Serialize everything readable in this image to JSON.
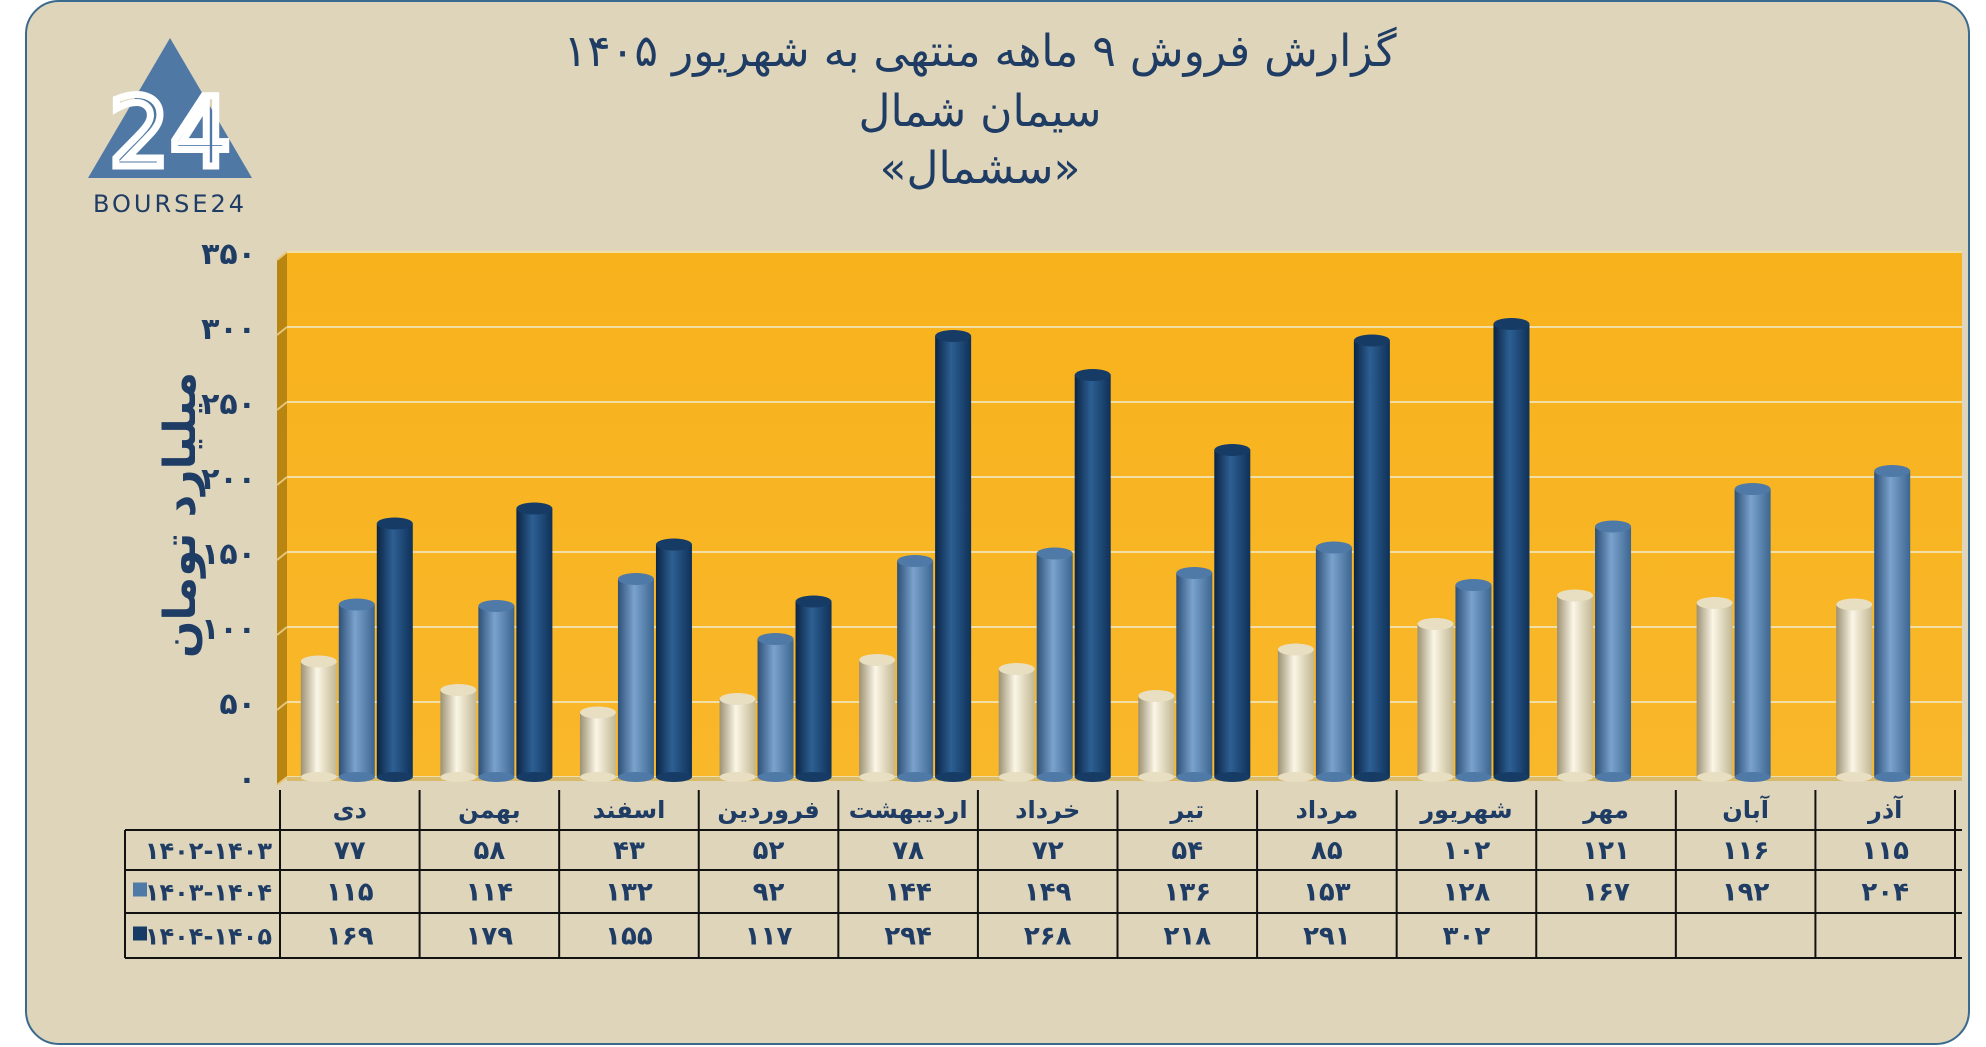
{
  "logo": {
    "number": "24",
    "text": "BOURSE24"
  },
  "title_lines": [
    "گزارش  فروش ۹ ماهه منتهی به شهریور ۱۴۰۵",
    "سیمان شمال",
    "«سشمال»"
  ],
  "chart_data": {
    "type": "bar",
    "ylabel": "میلیارد تومان",
    "ylim": [
      0,
      350
    ],
    "y_ticks": [
      0,
      50,
      100,
      150,
      200,
      250,
      300,
      350
    ],
    "y_tick_labels": [
      "۰",
      "۵۰",
      "۱۰۰",
      "۱۵۰",
      "۲۰۰",
      "۲۵۰",
      "۳۰۰",
      "۳۵۰"
    ],
    "grid": true,
    "legend": "table-below",
    "categories": [
      "دی",
      "بهمن",
      "اسفند",
      "فروردین",
      "اردیبهشت",
      "خرداد",
      "تیر",
      "مرداد",
      "شهریور",
      "مهر",
      "آبان",
      "آذر"
    ],
    "series": [
      {
        "name": "۱۴۰۲-۱۴۰۳",
        "color": "#e8dfc2",
        "values": [
          77,
          58,
          43,
          52,
          78,
          72,
          54,
          85,
          102,
          121,
          116,
          115
        ],
        "value_labels": [
          "۷۷",
          "۵۸",
          "۴۳",
          "۵۲",
          "۷۸",
          "۷۲",
          "۵۴",
          "۸۵",
          "۱۰۲",
          "۱۲۱",
          "۱۱۶",
          "۱۱۵"
        ]
      },
      {
        "name": "۱۴۰۳-۱۴۰۴",
        "color": "#4f79a7",
        "values": [
          115,
          114,
          132,
          92,
          144,
          149,
          136,
          153,
          128,
          167,
          192,
          204
        ],
        "value_labels": [
          "۱۱۵",
          "۱۱۴",
          "۱۳۲",
          "۹۲",
          "۱۴۴",
          "۱۴۹",
          "۱۳۶",
          "۱۵۳",
          "۱۲۸",
          "۱۶۷",
          "۱۹۲",
          "۲۰۴"
        ]
      },
      {
        "name": "۱۴۰۴-۱۴۰۵",
        "color": "#163c66",
        "values": [
          169,
          179,
          155,
          117,
          294,
          268,
          218,
          291,
          302,
          null,
          null,
          null
        ],
        "value_labels": [
          "۱۶۹",
          "۱۷۹",
          "۱۵۵",
          "۱۱۷",
          "۲۹۴",
          "۲۶۸",
          "۲۱۸",
          "۲۹۱",
          "۳۰۲",
          "",
          "",
          ""
        ]
      }
    ]
  }
}
